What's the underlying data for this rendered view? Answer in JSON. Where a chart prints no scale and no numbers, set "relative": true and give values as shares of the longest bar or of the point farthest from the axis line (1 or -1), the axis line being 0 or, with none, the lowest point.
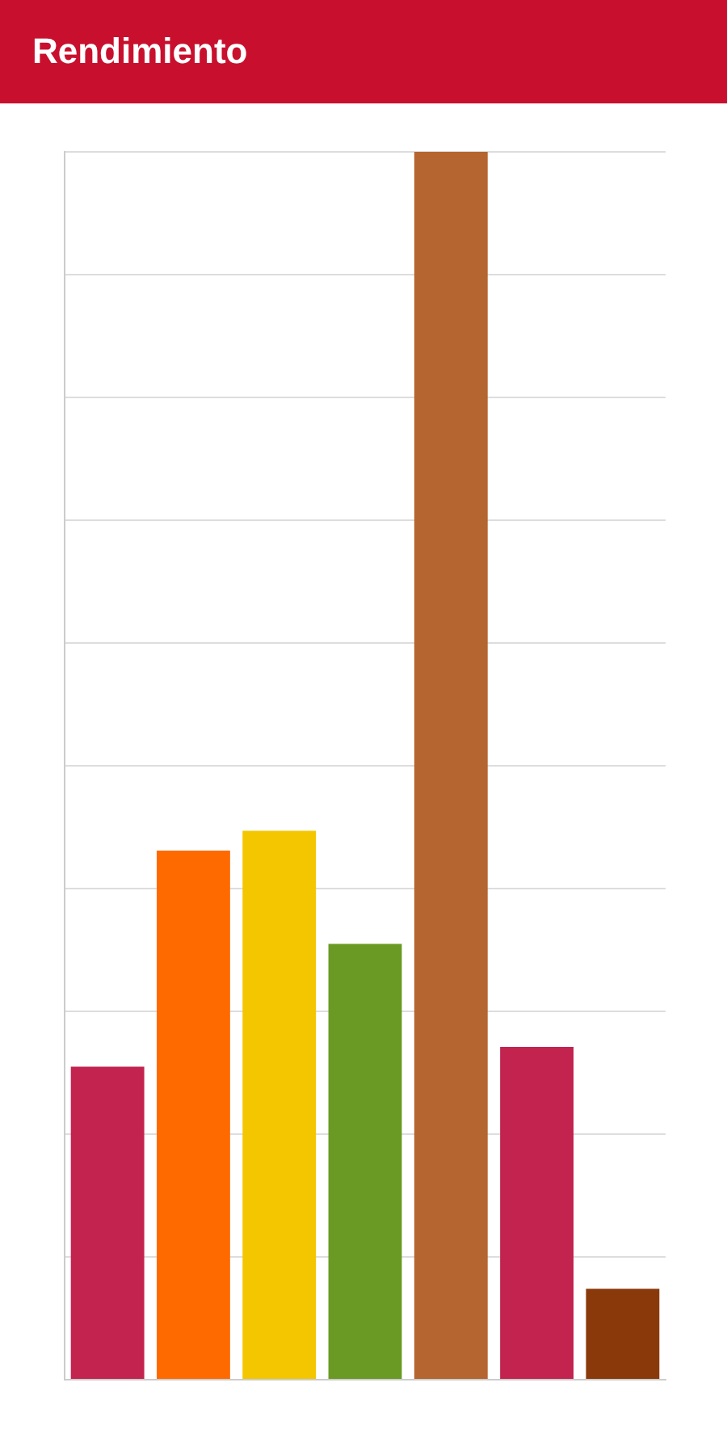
{
  "chart_data": {
    "type": "bar",
    "title": "Rendimiento",
    "categories": [
      null,
      null,
      null,
      null,
      null,
      null,
      null
    ],
    "values": [
      0.255,
      0.431,
      0.447,
      0.355,
      1,
      0.271,
      0.074
    ],
    "colors": [
      "#c2244f",
      "#ff6a00",
      "#f4c600",
      "#6a9a24",
      "#b5652f",
      "#c2244f",
      "#8a3a0a"
    ],
    "relative": true,
    "grid": "y"
  }
}
